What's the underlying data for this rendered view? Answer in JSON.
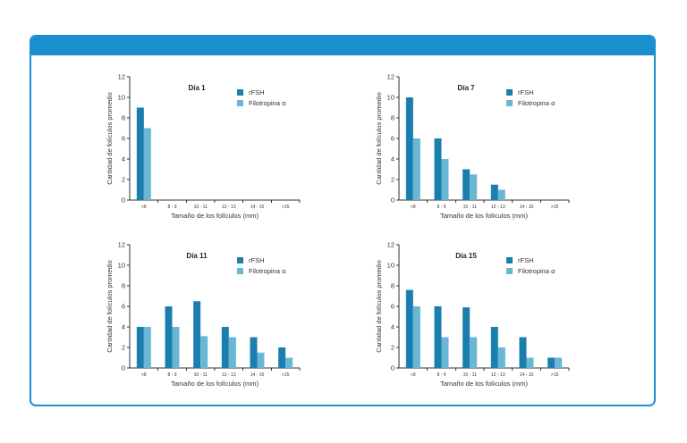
{
  "colors": {
    "header": "#1a8fd0",
    "rfsh": "#1a7fae",
    "filotropina": "#6ab7d5"
  },
  "chart_data": [
    {
      "type": "bar",
      "title": "Día 1",
      "xlabel": "Tamaño de los folículos (mm)",
      "ylabel": "Cantidad de folículos promedio",
      "ylim": [
        0,
        12
      ],
      "yticks": [
        "0",
        "2",
        "4",
        "6",
        "8",
        "10",
        "12"
      ],
      "categories": [
        "<8",
        "8 - 9",
        "10 - 11",
        "12 - 13",
        "14 - 15",
        ">15"
      ],
      "series": [
        {
          "name": "rFSH",
          "values": [
            9,
            0,
            0,
            0,
            0,
            0
          ]
        },
        {
          "name": "Filotropina α",
          "values": [
            7,
            0,
            0,
            0,
            0,
            0
          ]
        }
      ]
    },
    {
      "type": "bar",
      "title": "Día 7",
      "xlabel": "Tamaño de los folículos (mm)",
      "ylabel": "Cantidad de folículos promedio",
      "ylim": [
        0,
        12
      ],
      "yticks": [
        "0",
        "2",
        "4",
        "6",
        "8",
        "10",
        "12"
      ],
      "categories": [
        "<8",
        "8 - 9",
        "10 - 11",
        "12 - 13",
        "14 - 15",
        ">15"
      ],
      "series": [
        {
          "name": "rFSH",
          "values": [
            10,
            6,
            3,
            1.5,
            0,
            0
          ]
        },
        {
          "name": "Filotropina α",
          "values": [
            6,
            4,
            2.5,
            1,
            0,
            0
          ]
        }
      ]
    },
    {
      "type": "bar",
      "title": "Día 11",
      "xlabel": "Tamaño de los folículos (mm)",
      "ylabel": "Cantidad de folículos promedio",
      "ylim": [
        0,
        12
      ],
      "yticks": [
        "0",
        "2",
        "4",
        "6",
        "8",
        "10",
        "12"
      ],
      "categories": [
        "<8",
        "8 - 9",
        "10 - 11",
        "12 - 13",
        "14 - 15",
        ">15"
      ],
      "series": [
        {
          "name": "rFSH",
          "values": [
            4,
            6,
            6.5,
            4,
            3,
            2
          ]
        },
        {
          "name": "Filotropina α",
          "values": [
            4,
            4,
            3.1,
            3,
            1.5,
            1
          ]
        }
      ]
    },
    {
      "type": "bar",
      "title": "Día 15",
      "xlabel": "Tamaño de los folículos (mm)",
      "ylabel": "Cantidad de folículos promedio",
      "ylim": [
        0,
        12
      ],
      "yticks": [
        "0",
        "2",
        "4",
        "6",
        "8",
        "10",
        "12"
      ],
      "categories": [
        "<8",
        "8 - 9",
        "10 - 11",
        "12 - 13",
        "14 - 15",
        ">15"
      ],
      "series": [
        {
          "name": "rFSH",
          "values": [
            7.6,
            6,
            5.9,
            4,
            3,
            1
          ]
        },
        {
          "name": "Filotropina α",
          "values": [
            6,
            3,
            3,
            2,
            1,
            1
          ]
        }
      ]
    }
  ]
}
